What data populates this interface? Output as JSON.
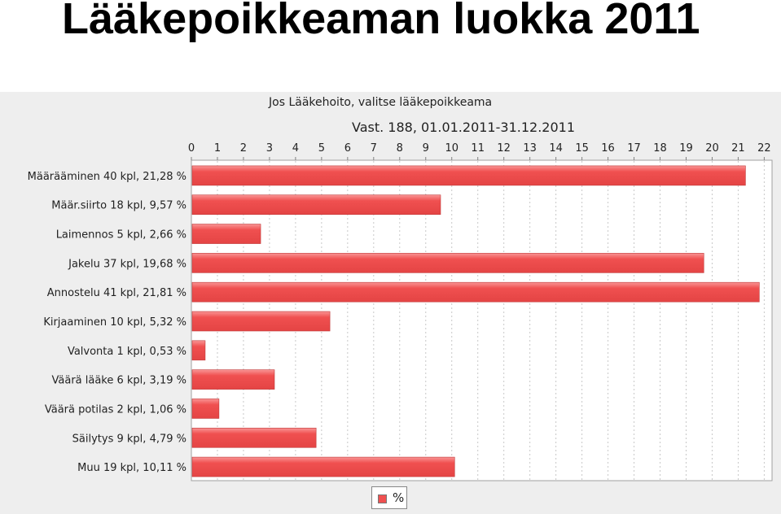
{
  "slide": {
    "title": "Lääkepoikkeaman luokka 2011"
  },
  "chart_data": {
    "type": "bar",
    "orientation": "horizontal",
    "title": "Jos Lääkehoito, valitse lääkepoikkeama",
    "subtitle": "Vast. 188, 01.01.2011-31.12.2011",
    "xlabel": "",
    "ylabel": "",
    "xlim": [
      0,
      22.3
    ],
    "x_ticks": [
      "0",
      "1",
      "2",
      "3",
      "4",
      "5",
      "6",
      "7",
      "8",
      "9",
      "10",
      "11",
      "12",
      "13",
      "14",
      "15",
      "16",
      "17",
      "18",
      "19",
      "20",
      "21",
      "22"
    ],
    "x_axis_position": "top",
    "grid": "vertical dashed",
    "categories": [
      "Määrääminen 40 kpl, 21,28 %",
      "Määr.siirto 18 kpl, 9,57 %",
      "Laimennos 5 kpl, 2,66 %",
      "Jakelu 37 kpl, 19,68 %",
      "Annostelu 41 kpl, 21,81 %",
      "Kirjaaminen 10 kpl, 5,32 %",
      "Valvonta 1 kpl, 0,53 %",
      "Väärä lääke 6 kpl, 3,19 %",
      "Väärä potilas 2 kpl, 1,06 %",
      "Säilytys 9 kpl, 4,79 %",
      "Muu 19 kpl, 10,11 %"
    ],
    "series": [
      {
        "name": "%",
        "color": "#f05050",
        "values": [
          21.28,
          9.57,
          2.66,
          19.68,
          21.81,
          5.32,
          0.53,
          3.19,
          1.06,
          4.79,
          10.11
        ]
      }
    ],
    "legend": {
      "position": "bottom",
      "label": "%"
    }
  },
  "colors": {
    "panel_background": "#eeeeee",
    "plot_background": "#ffffff",
    "bar_fill": "#f05050",
    "bar_highlight": "#f99595",
    "bar_stroke": "#c03838",
    "grid": "#c8c8c8"
  }
}
